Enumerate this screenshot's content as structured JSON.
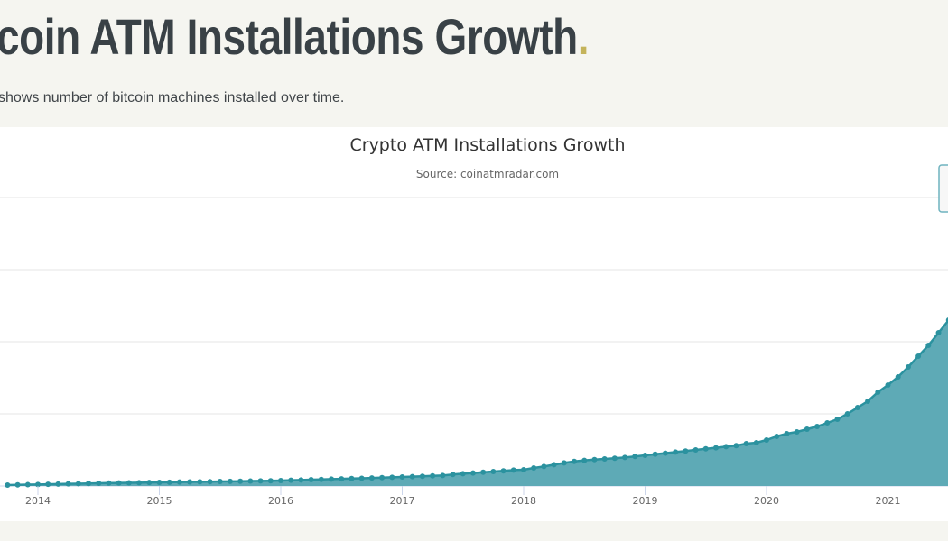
{
  "page": {
    "heading": "coin ATM Installations Growth",
    "heading_dot": ".",
    "description": "shows number of bitcoin machines installed over time."
  },
  "colors": {
    "accent": "#c4b35a",
    "series": "#2b929f",
    "area": "#5eaab6"
  },
  "chart_data": {
    "type": "area",
    "title": "Crypto ATM Installations Growth",
    "subtitle": "Source: coinatmradar.com",
    "xlabel": "",
    "ylabel": "",
    "x_start": "2013-10",
    "x_interval": "monthly",
    "x_ticks": [
      "2014",
      "2015",
      "2016",
      "2017",
      "2018",
      "2019",
      "2020",
      "2021"
    ],
    "ylim": [
      0,
      40000
    ],
    "grid": true,
    "markers": true,
    "values": [
      120,
      150,
      180,
      200,
      230,
      260,
      290,
      320,
      350,
      380,
      400,
      420,
      440,
      460,
      480,
      500,
      520,
      540,
      560,
      580,
      600,
      620,
      640,
      660,
      680,
      700,
      720,
      750,
      790,
      830,
      870,
      910,
      950,
      990,
      1030,
      1070,
      1110,
      1150,
      1200,
      1250,
      1300,
      1350,
      1400,
      1450,
      1600,
      1700,
      1800,
      1900,
      2000,
      2100,
      2200,
      2250,
      2500,
      2700,
      2950,
      3200,
      3400,
      3550,
      3650,
      3750,
      3850,
      3950,
      4100,
      4250,
      4400,
      4550,
      4700,
      4850,
      5000,
      5150,
      5300,
      5450,
      5600,
      5875,
      6000,
      6375,
      6875,
      7250,
      7500,
      7875,
      8250,
      8750,
      9250,
      10000,
      10875,
      11750,
      13000,
      14000,
      15125,
      16500,
      18000,
      19500,
      21250,
      23000
    ]
  }
}
